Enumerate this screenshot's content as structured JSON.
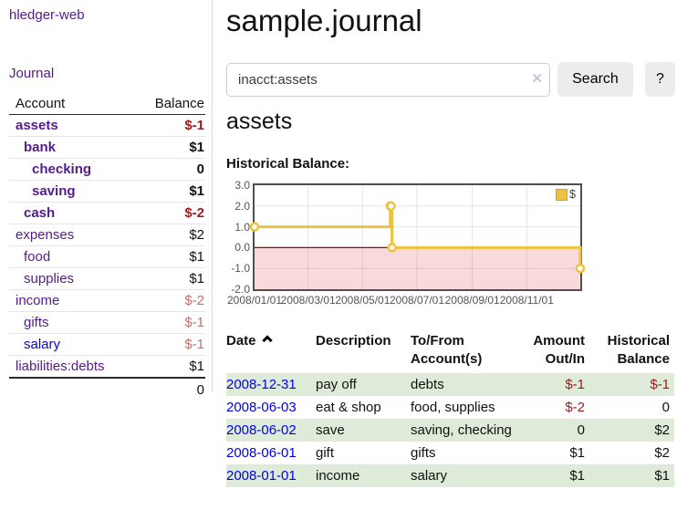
{
  "app": {
    "title": "hledger-web"
  },
  "sidebar": {
    "journal_link": "Journal",
    "accounts_table": {
      "headers": [
        "Account",
        "Balance"
      ],
      "rows": [
        {
          "name": "assets",
          "indent": 0,
          "bold": true,
          "balance": "$-1",
          "balance_style": "negative"
        },
        {
          "name": "bank",
          "indent": 1,
          "bold": true,
          "balance": "$1",
          "balance_style": "normal"
        },
        {
          "name": "checking",
          "indent": 2,
          "bold": true,
          "balance": "0",
          "balance_style": "normal"
        },
        {
          "name": "saving",
          "indent": 2,
          "bold": true,
          "balance": "$1",
          "balance_style": "normal"
        },
        {
          "name": "cash",
          "indent": 1,
          "bold": true,
          "balance": "$-2",
          "balance_style": "negative"
        },
        {
          "name": "expenses",
          "indent": 0,
          "bold": false,
          "balance": "$2",
          "balance_style": "normal"
        },
        {
          "name": "food",
          "indent": 1,
          "bold": false,
          "balance": "$1",
          "balance_style": "normal"
        },
        {
          "name": "supplies",
          "indent": 1,
          "bold": false,
          "balance": "$1",
          "balance_style": "normal"
        },
        {
          "name": "income",
          "indent": 0,
          "bold": false,
          "balance": "$-2",
          "balance_style": "negative-muted"
        },
        {
          "name": "gifts",
          "indent": 1,
          "bold": false,
          "balance": "$-1",
          "balance_style": "negative-muted"
        },
        {
          "name": "salary",
          "indent": 1,
          "bold": false,
          "balance": "$-1",
          "balance_style": "negative-muted",
          "link_color": "blue"
        },
        {
          "name": "liabilities:debts",
          "indent": 0,
          "bold": false,
          "balance": "$1",
          "balance_style": "normal"
        }
      ],
      "total": "0"
    }
  },
  "header": {
    "title": "sample.journal"
  },
  "search": {
    "value": "inacct:assets",
    "clear_icon": "×",
    "button_label": "Search",
    "help_label": "?"
  },
  "account_page": {
    "heading": "assets",
    "chart_label": "Historical Balance:"
  },
  "chart_data": {
    "type": "line",
    "step": true,
    "title": "Historical Balance",
    "series": [
      {
        "name": "$",
        "color": "#edc240",
        "points": [
          [
            "2008-01-01",
            1
          ],
          [
            "2008-06-01",
            2
          ],
          [
            "2008-06-02",
            2
          ],
          [
            "2008-06-03",
            0
          ],
          [
            "2008-12-31",
            -1
          ]
        ]
      }
    ],
    "xlim": [
      "2008-01-01",
      "2008-12-31"
    ],
    "ylim": [
      -2,
      3
    ],
    "yticks": [
      "3.0",
      "2.0",
      "1.0",
      "0.0",
      "-1.0",
      "-2.0"
    ],
    "xticks": [
      "2008/01/01",
      "2008/03/01",
      "2008/05/01",
      "2008/07/01",
      "2008/09/01",
      "2008/11/01"
    ],
    "legend_position": "top-right",
    "grid": true,
    "negative_region_color": "#f9dada",
    "zero_line_color": "#a40000"
  },
  "register": {
    "headers": [
      "Date",
      "Description",
      "To/From Account(s)",
      "Amount Out/In",
      "Historical Balance"
    ],
    "rows": [
      {
        "date": "2008-12-31",
        "description": "pay off",
        "accounts": "debts",
        "amount": "$-1",
        "amount_negative": true,
        "balance": "$-1",
        "balance_negative": true
      },
      {
        "date": "2008-06-03",
        "description": "eat & shop",
        "accounts": "food, supplies",
        "amount": "$-2",
        "amount_negative": true,
        "balance": "0",
        "balance_negative": false
      },
      {
        "date": "2008-06-02",
        "description": "save",
        "accounts": "saving, checking",
        "amount": "0",
        "amount_negative": false,
        "balance": "$2",
        "balance_negative": false
      },
      {
        "date": "2008-06-01",
        "description": "gift",
        "accounts": "gifts",
        "amount": "$1",
        "amount_negative": false,
        "balance": "$2",
        "balance_negative": false
      },
      {
        "date": "2008-01-01",
        "description": "income",
        "accounts": "salary",
        "amount": "$1",
        "amount_negative": false,
        "balance": "$1",
        "balance_negative": false
      }
    ]
  },
  "colors": {
    "link_purple": "#551a8b",
    "link_blue": "#0000ee",
    "negative_red": "#9b1b1b",
    "negative_muted": "#c47270",
    "row_green": "#ddebd8",
    "chart_gold": "#edc240",
    "chart_negative_bg": "#f9dada",
    "chart_zero_line": "#a40000"
  }
}
